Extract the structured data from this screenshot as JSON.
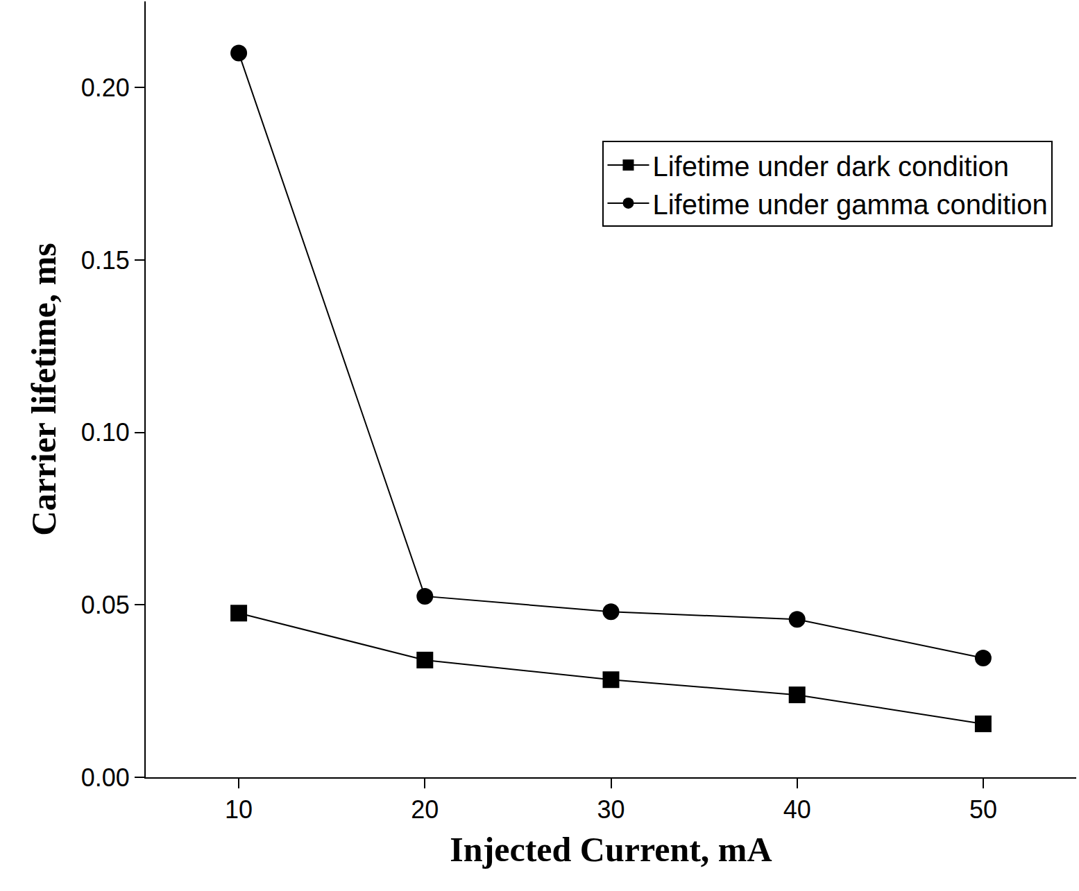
{
  "chart_data": {
    "type": "line",
    "x_label": "Injected Current, mA",
    "y_label": "Carrier lifetime, ms",
    "x": [
      10,
      20,
      30,
      40,
      50
    ],
    "series": [
      {
        "name": "Lifetime under dark condition",
        "color": "#000000",
        "marker": "square",
        "line_style": "solid",
        "values": [
          0.0476,
          0.034,
          0.0283,
          0.0239,
          0.0155
        ]
      },
      {
        "name": "Lifetime under gamma condition",
        "color": "#000000",
        "marker": "circle",
        "line_style": "solid",
        "values": [
          0.21,
          0.0525,
          0.048,
          0.0458,
          0.0346
        ]
      }
    ],
    "xlim": [
      5,
      55
    ],
    "xticks": [
      10,
      20,
      30,
      40,
      50
    ],
    "ylim": [
      0,
      0.225
    ],
    "yticks": [
      {
        "value": 0,
        "label": "0.00"
      },
      0.05,
      {
        "value": 0.1,
        "label": "0.10"
      },
      0.15,
      {
        "value": 0.2,
        "label": "0.20"
      }
    ],
    "grid": false,
    "legend": "top right"
  }
}
